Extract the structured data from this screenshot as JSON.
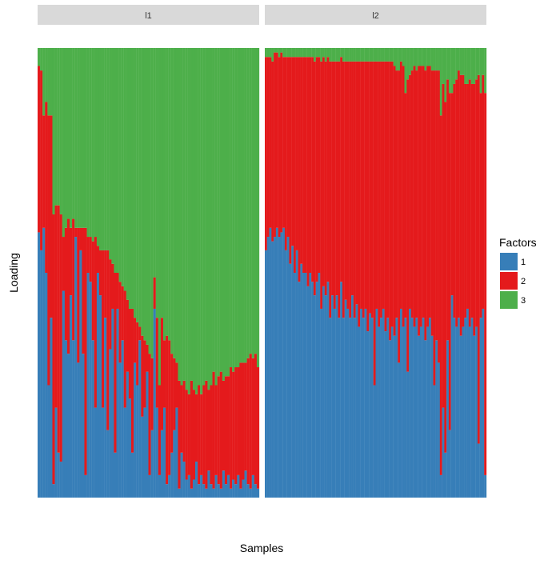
{
  "chart_data": {
    "type": "bar",
    "stacked": true,
    "facet_labels": [
      "l1",
      "l2"
    ],
    "xlabel": "Samples",
    "ylabel": "Loading",
    "ylim": [
      0,
      1
    ],
    "legend": {
      "title": "Factors",
      "placement": "right",
      "entries": [
        {
          "name": "1",
          "color": "#377eb8"
        },
        {
          "name": "2",
          "color": "#e41a1c"
        },
        {
          "name": "3",
          "color": "#4daf4a"
        }
      ]
    },
    "panel_background": "#ffffff",
    "strip_background": "#d9d9d9",
    "panels": [
      {
        "label": "l1",
        "factor1": [
          0.59,
          0.55,
          0.6,
          0.5,
          0.25,
          0.4,
          0.03,
          0.2,
          0.1,
          0.08,
          0.46,
          0.35,
          0.32,
          0.45,
          0.35,
          0.58,
          0.3,
          0.55,
          0.32,
          0.05,
          0.5,
          0.48,
          0.35,
          0.2,
          0.5,
          0.45,
          0.2,
          0.4,
          0.15,
          0.33,
          0.42,
          0.1,
          0.42,
          0.3,
          0.35,
          0.2,
          0.28,
          0.22,
          0.1,
          0.3,
          0.25,
          0.35,
          0.18,
          0.2,
          0.28,
          0.05,
          0.15,
          0.42,
          0.2,
          0.05,
          0.15,
          0.2,
          0.03,
          0.05,
          0.1,
          0.15,
          0.2,
          0.02,
          0.1,
          0.08,
          0.04,
          0.05,
          0.02,
          0.04,
          0.08,
          0.03,
          0.05,
          0.03,
          0.02,
          0.06,
          0.03,
          0.02,
          0.05,
          0.03,
          0.02,
          0.06,
          0.03,
          0.05,
          0.02,
          0.04,
          0.03,
          0.05,
          0.02,
          0.04,
          0.06,
          0.03,
          0.02,
          0.05,
          0.03,
          0.02
        ],
        "factor2": [
          0.37,
          0.4,
          0.25,
          0.38,
          0.6,
          0.45,
          0.6,
          0.45,
          0.55,
          0.55,
          0.12,
          0.25,
          0.3,
          0.15,
          0.27,
          0.02,
          0.3,
          0.05,
          0.28,
          0.55,
          0.08,
          0.1,
          0.22,
          0.38,
          0.06,
          0.1,
          0.35,
          0.15,
          0.4,
          0.2,
          0.1,
          0.4,
          0.08,
          0.18,
          0.12,
          0.26,
          0.16,
          0.2,
          0.32,
          0.1,
          0.14,
          0.03,
          0.18,
          0.15,
          0.06,
          0.27,
          0.16,
          0.07,
          0.2,
          0.2,
          0.25,
          0.15,
          0.33,
          0.3,
          0.22,
          0.16,
          0.1,
          0.24,
          0.15,
          0.18,
          0.2,
          0.18,
          0.24,
          0.2,
          0.15,
          0.22,
          0.18,
          0.22,
          0.24,
          0.18,
          0.22,
          0.26,
          0.2,
          0.24,
          0.26,
          0.2,
          0.24,
          0.22,
          0.27,
          0.24,
          0.26,
          0.24,
          0.28,
          0.26,
          0.24,
          0.28,
          0.3,
          0.26,
          0.29,
          0.27
        ],
        "factor3": [
          0.04,
          0.05,
          0.15,
          0.12,
          0.15,
          0.15,
          0.37,
          0.35,
          0.35,
          0.37,
          0.42,
          0.4,
          0.38,
          0.4,
          0.38,
          0.4,
          0.4,
          0.4,
          0.4,
          0.4,
          0.42,
          0.42,
          0.43,
          0.42,
          0.44,
          0.45,
          0.45,
          0.45,
          0.45,
          0.47,
          0.48,
          0.5,
          0.5,
          0.52,
          0.53,
          0.54,
          0.56,
          0.58,
          0.58,
          0.6,
          0.61,
          0.62,
          0.64,
          0.65,
          0.66,
          0.68,
          0.69,
          0.51,
          0.6,
          0.75,
          0.6,
          0.65,
          0.64,
          0.65,
          0.68,
          0.69,
          0.7,
          0.74,
          0.75,
          0.74,
          0.76,
          0.77,
          0.74,
          0.76,
          0.77,
          0.75,
          0.77,
          0.75,
          0.74,
          0.76,
          0.75,
          0.72,
          0.75,
          0.73,
          0.72,
          0.74,
          0.73,
          0.73,
          0.71,
          0.72,
          0.71,
          0.71,
          0.7,
          0.7,
          0.7,
          0.69,
          0.68,
          0.69,
          0.68,
          0.71
        ]
      },
      {
        "label": "l2",
        "factor1": [
          0.55,
          0.58,
          0.6,
          0.57,
          0.58,
          0.6,
          0.58,
          0.59,
          0.6,
          0.55,
          0.58,
          0.52,
          0.56,
          0.5,
          0.55,
          0.48,
          0.52,
          0.5,
          0.5,
          0.47,
          0.5,
          0.48,
          0.45,
          0.48,
          0.5,
          0.42,
          0.47,
          0.45,
          0.48,
          0.4,
          0.45,
          0.42,
          0.45,
          0.4,
          0.48,
          0.4,
          0.44,
          0.42,
          0.4,
          0.45,
          0.4,
          0.43,
          0.38,
          0.42,
          0.4,
          0.42,
          0.37,
          0.41,
          0.4,
          0.25,
          0.42,
          0.38,
          0.4,
          0.42,
          0.37,
          0.4,
          0.35,
          0.38,
          0.36,
          0.4,
          0.3,
          0.42,
          0.38,
          0.4,
          0.28,
          0.42,
          0.4,
          0.38,
          0.4,
          0.36,
          0.38,
          0.4,
          0.35,
          0.38,
          0.4,
          0.36,
          0.25,
          0.35,
          0.3,
          0.05,
          0.2,
          0.1,
          0.35,
          0.15,
          0.45,
          0.4,
          0.38,
          0.4,
          0.36,
          0.38,
          0.4,
          0.42,
          0.38,
          0.4,
          0.36,
          0.38,
          0.12,
          0.4,
          0.42,
          0.05
        ],
        "factor2": [
          0.43,
          0.4,
          0.38,
          0.4,
          0.41,
          0.39,
          0.4,
          0.4,
          0.38,
          0.43,
          0.4,
          0.46,
          0.42,
          0.48,
          0.43,
          0.5,
          0.46,
          0.48,
          0.48,
          0.51,
          0.48,
          0.5,
          0.52,
          0.5,
          0.48,
          0.55,
          0.51,
          0.52,
          0.5,
          0.57,
          0.52,
          0.55,
          0.52,
          0.57,
          0.5,
          0.57,
          0.53,
          0.55,
          0.57,
          0.52,
          0.57,
          0.54,
          0.59,
          0.55,
          0.57,
          0.55,
          0.6,
          0.56,
          0.57,
          0.72,
          0.55,
          0.59,
          0.57,
          0.55,
          0.6,
          0.57,
          0.62,
          0.59,
          0.6,
          0.55,
          0.65,
          0.55,
          0.58,
          0.5,
          0.65,
          0.52,
          0.55,
          0.58,
          0.55,
          0.6,
          0.58,
          0.56,
          0.6,
          0.58,
          0.56,
          0.59,
          0.7,
          0.6,
          0.65,
          0.8,
          0.72,
          0.78,
          0.58,
          0.75,
          0.45,
          0.52,
          0.55,
          0.55,
          0.58,
          0.56,
          0.52,
          0.5,
          0.55,
          0.52,
          0.56,
          0.55,
          0.82,
          0.5,
          0.52,
          0.85
        ],
        "factor3": [
          0.02,
          0.02,
          0.02,
          0.03,
          0.01,
          0.01,
          0.02,
          0.01,
          0.02,
          0.02,
          0.02,
          0.02,
          0.02,
          0.02,
          0.02,
          0.02,
          0.02,
          0.02,
          0.02,
          0.02,
          0.02,
          0.02,
          0.03,
          0.02,
          0.02,
          0.03,
          0.02,
          0.03,
          0.02,
          0.03,
          0.03,
          0.03,
          0.03,
          0.03,
          0.02,
          0.03,
          0.03,
          0.03,
          0.03,
          0.03,
          0.03,
          0.03,
          0.03,
          0.03,
          0.03,
          0.03,
          0.03,
          0.03,
          0.03,
          0.03,
          0.03,
          0.03,
          0.03,
          0.03,
          0.03,
          0.03,
          0.03,
          0.03,
          0.04,
          0.05,
          0.05,
          0.03,
          0.04,
          0.1,
          0.07,
          0.06,
          0.05,
          0.04,
          0.05,
          0.04,
          0.04,
          0.04,
          0.05,
          0.04,
          0.04,
          0.05,
          0.05,
          0.05,
          0.05,
          0.15,
          0.08,
          0.12,
          0.07,
          0.1,
          0.1,
          0.08,
          0.07,
          0.05,
          0.06,
          0.06,
          0.08,
          0.08,
          0.07,
          0.08,
          0.08,
          0.07,
          0.06,
          0.1,
          0.06,
          0.1
        ]
      }
    ]
  }
}
